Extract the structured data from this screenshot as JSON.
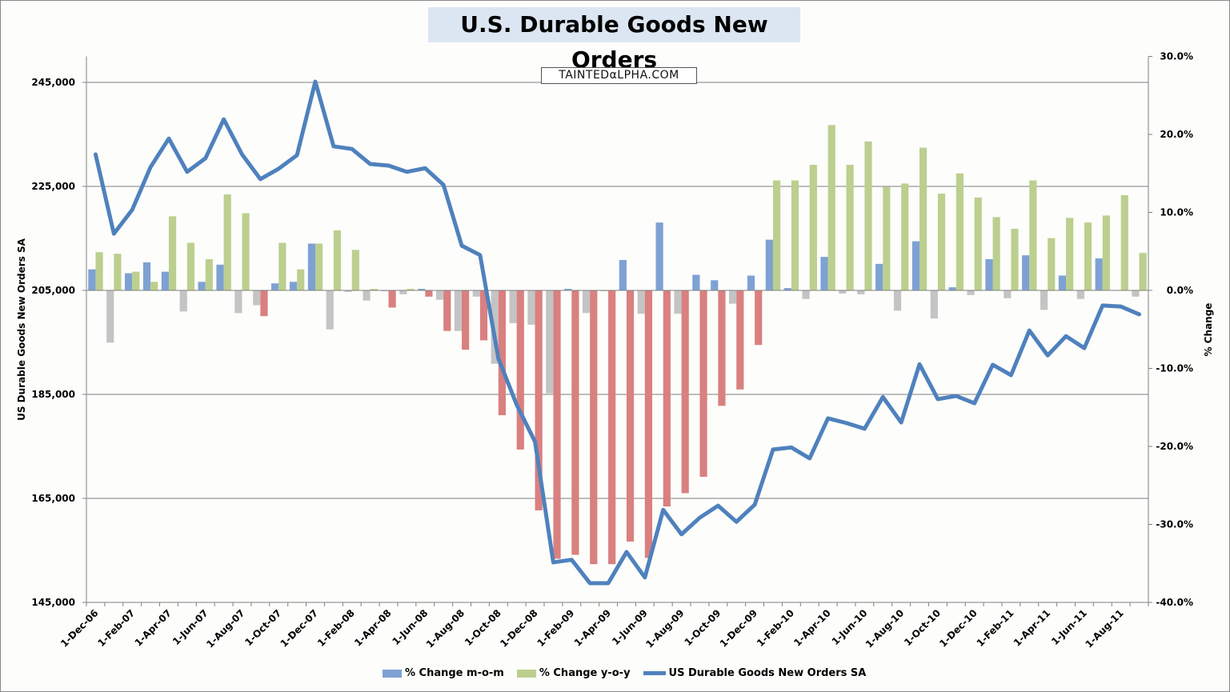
{
  "chart_data": {
    "type": "bar+line",
    "title": "U.S. Durable Goods New Orders",
    "watermark": "TAINTEDαLPHA.COM",
    "ylabel_left": "US Durable Goods New Orders SA",
    "ylabel_right": "% Change",
    "ylim_left": [
      145000,
      250000
    ],
    "yticks_left": [
      "145,000",
      "165,000",
      "185,000",
      "205,000",
      "225,000",
      "245,000"
    ],
    "ylim_right": [
      -40,
      30
    ],
    "yticks_right": [
      "-40.0%",
      "-30.0%",
      "-20.0%",
      "-10.0%",
      "0.0%",
      "10.0%",
      "20.0%",
      "30.0%"
    ],
    "grid": "horizontal",
    "legend_position": "bottom",
    "x_tick_labels": [
      "1-Dec-06",
      "1-Feb-07",
      "1-Apr-07",
      "1-Jun-07",
      "1-Aug-07",
      "1-Oct-07",
      "1-Dec-07",
      "1-Feb-08",
      "1-Apr-08",
      "1-Jun-08",
      "1-Aug-08",
      "1-Oct-08",
      "1-Dec-08",
      "1-Feb-09",
      "1-Apr-09",
      "1-Jun-09",
      "1-Aug-09",
      "1-Oct-09",
      "1-Dec-09",
      "1-Feb-10",
      "1-Apr-10",
      "1-Jun-10",
      "1-Aug-10",
      "1-Oct-10",
      "1-Dec-10",
      "1-Feb-11",
      "1-Apr-11",
      "1-Jun-11",
      "1-Aug-11"
    ],
    "categories": [
      "Dec-06",
      "Jan-07",
      "Feb-07",
      "Mar-07",
      "Apr-07",
      "May-07",
      "Jun-07",
      "Jul-07",
      "Aug-07",
      "Sep-07",
      "Oct-07",
      "Nov-07",
      "Dec-07",
      "Jan-08",
      "Feb-08",
      "Mar-08",
      "Apr-08",
      "May-08",
      "Jun-08",
      "Jul-08",
      "Aug-08",
      "Sep-08",
      "Oct-08",
      "Nov-08",
      "Dec-08",
      "Jan-09",
      "Feb-09",
      "Mar-09",
      "Apr-09",
      "May-09",
      "Jun-09",
      "Jul-09",
      "Aug-09",
      "Sep-09",
      "Oct-09",
      "Nov-09",
      "Dec-09",
      "Jan-10",
      "Feb-10",
      "Mar-10",
      "Apr-10",
      "May-10",
      "Jun-10",
      "Jul-10",
      "Aug-10",
      "Sep-10",
      "Oct-10",
      "Nov-10",
      "Dec-10",
      "Jan-11",
      "Feb-11",
      "Mar-11",
      "Apr-11",
      "May-11",
      "Jun-11",
      "Jul-11",
      "Aug-11",
      "Sep-11"
    ],
    "series": [
      {
        "name": "% Change m-o-m",
        "type": "bar",
        "axis": "right",
        "color_pos": "#7ea1d4",
        "color_neg": "#c4c4c4",
        "values": [
          2.7,
          -6.7,
          2.2,
          3.6,
          2.4,
          -2.7,
          1.1,
          3.3,
          -2.9,
          -1.9,
          0.9,
          1.1,
          6.0,
          -5.0,
          -0.2,
          -1.3,
          -0.1,
          -0.5,
          0.2,
          -1.2,
          -5.2,
          -0.8,
          -9.4,
          -4.2,
          -4.4,
          -13.2,
          0.2,
          -2.9,
          -0.1,
          3.9,
          -3.0,
          8.7,
          -3.0,
          2.0,
          1.3,
          -1.7,
          1.9,
          6.5,
          0.3,
          -1.1,
          4.3,
          -0.4,
          -0.5,
          3.4,
          -2.6,
          6.3,
          -3.6,
          0.4,
          -0.6,
          4.0,
          -1.0,
          4.5,
          -2.5,
          1.9,
          -1.1,
          4.1,
          0.0,
          -0.8
        ]
      },
      {
        "name": "% Change y-o-y",
        "type": "bar",
        "axis": "right",
        "color_pos": "#bccf8f",
        "color_neg": "#d98080",
        "values": [
          4.9,
          4.7,
          2.4,
          1.1,
          9.5,
          6.1,
          4.0,
          12.3,
          9.9,
          -3.3,
          6.1,
          2.7,
          6.0,
          7.7,
          5.2,
          0.2,
          -2.2,
          0.2,
          -0.8,
          -5.2,
          -7.6,
          -6.4,
          -16.0,
          -20.4,
          -28.2,
          -34.4,
          -33.9,
          -35.1,
          -35.1,
          -32.2,
          -34.3,
          -27.7,
          -26.0,
          -23.9,
          -14.8,
          -12.7,
          -7.0,
          14.1,
          14.1,
          16.1,
          21.2,
          16.1,
          19.1,
          13.3,
          13.7,
          18.3,
          12.4,
          15.0,
          11.9,
          9.4,
          7.9,
          14.1,
          6.7,
          9.3,
          8.7,
          9.6,
          12.2,
          4.8
        ]
      },
      {
        "name": "US Durable Goods New Orders SA",
        "type": "line",
        "axis": "left",
        "color": "#4f81bd",
        "values": [
          231150,
          215900,
          220500,
          228700,
          234200,
          227800,
          230400,
          237900,
          231150,
          226400,
          228400,
          231000,
          245150,
          232700,
          232200,
          229300,
          229000,
          227800,
          228500,
          225300,
          213600,
          211800,
          191900,
          183000,
          175900,
          152700,
          153200,
          148700,
          148700,
          154700,
          149800,
          162800,
          158100,
          161300,
          163600,
          160500,
          163800,
          174400,
          174800,
          172700,
          180400,
          179500,
          178400,
          184500,
          179600,
          190800,
          184100,
          184700,
          183300,
          190700,
          188700,
          197300,
          192500,
          196200,
          193900,
          202100,
          201900,
          200400
        ]
      }
    ]
  }
}
